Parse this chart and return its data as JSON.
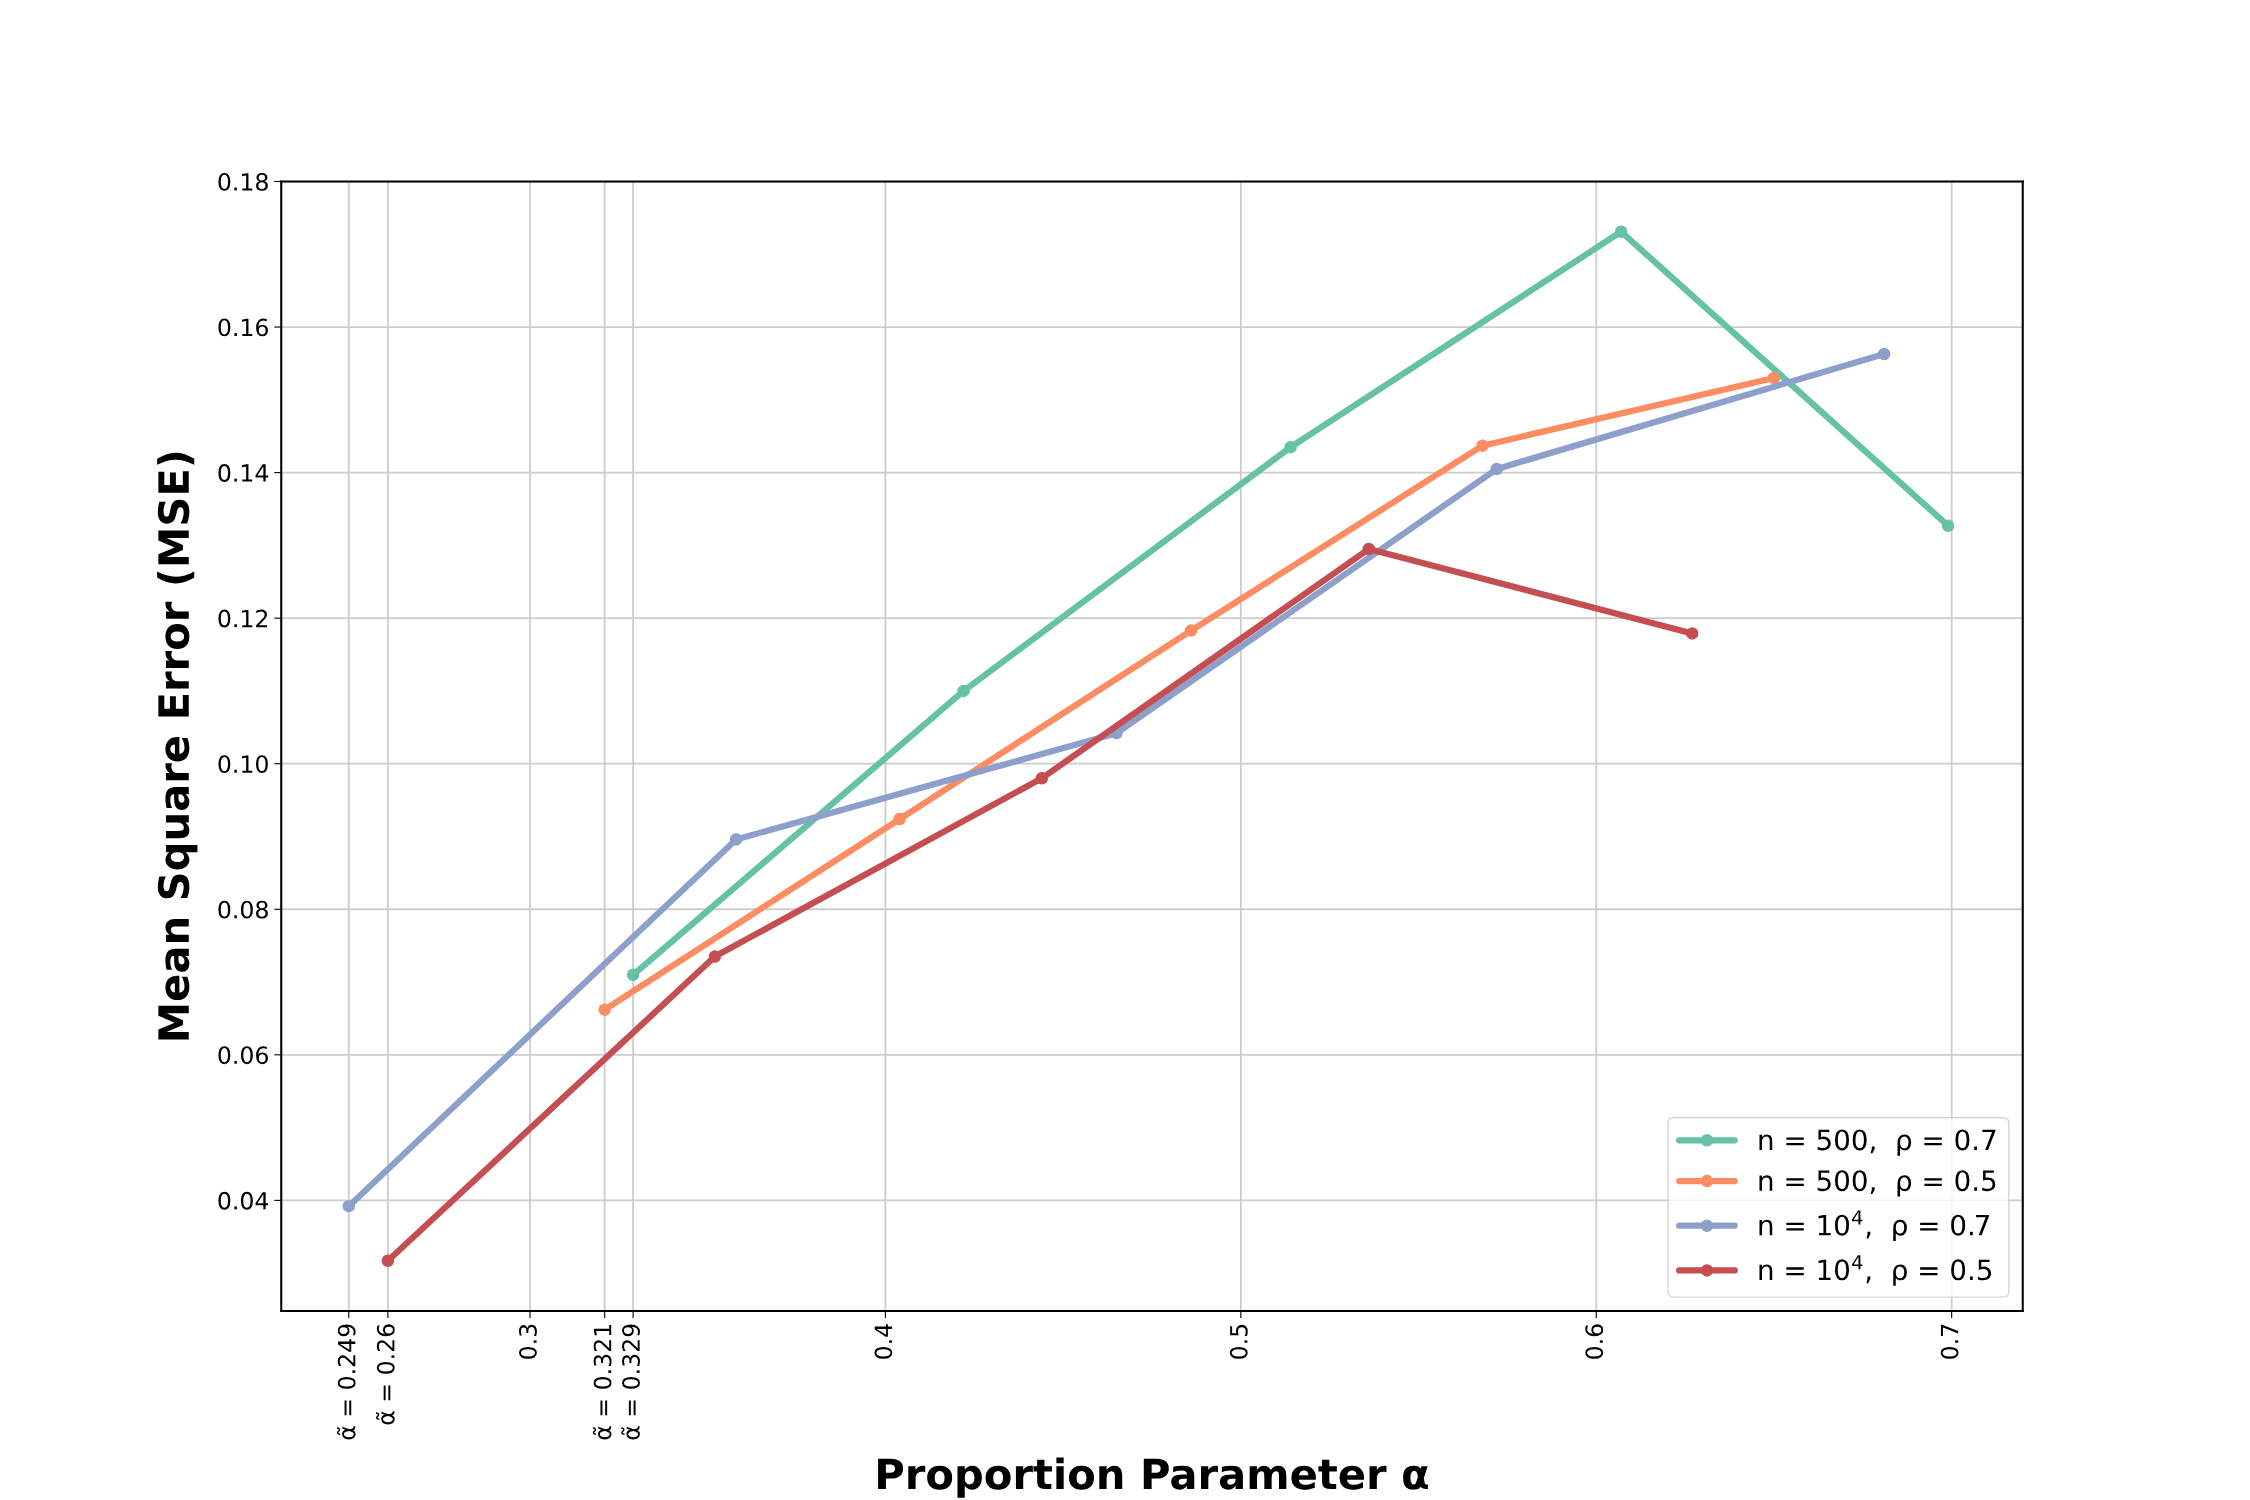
{
  "chart_data": {
    "type": "line",
    "xlabel": "Proportion Parameter α",
    "ylabel": "Mean Square Error (MSE)",
    "xlim": [
      0.23,
      0.72
    ],
    "ylim": [
      0.0248,
      0.18
    ],
    "xticks": [
      {
        "value": 0.249,
        "label": "α̃ = 0.249"
      },
      {
        "value": 0.26,
        "label": "α̃ = 0.26"
      },
      0.3,
      {
        "value": 0.321,
        "label": "α̃ = 0.321"
      },
      {
        "value": 0.329,
        "label": "α̃ = 0.329"
      },
      0.4,
      0.5,
      0.6,
      0.7
    ],
    "yticks": [
      {
        "value": 0.04,
        "label": "0.04"
      },
      {
        "value": 0.06,
        "label": "0.06"
      },
      {
        "value": 0.08,
        "label": "0.08"
      },
      {
        "value": 0.1,
        "label": "0.10"
      },
      {
        "value": 0.12,
        "label": "0.12"
      },
      {
        "value": 0.14,
        "label": "0.14"
      },
      {
        "value": 0.16,
        "label": "0.16"
      },
      {
        "value": 0.18,
        "label": "0.18"
      }
    ],
    "grid": true,
    "legend": "bottom right",
    "marker": "circle",
    "line_style": "solid",
    "series": [
      {
        "name": "n = 500,  ρ = 0.7",
        "color": "#66c2a5",
        "x": [
          0.329,
          0.422,
          0.514,
          0.607,
          0.699
        ],
        "values": [
          0.071,
          0.11,
          0.1435,
          0.1731,
          0.1327
        ]
      },
      {
        "name": "n = 500,  ρ = 0.5",
        "color": "#fc8d62",
        "x": [
          0.321,
          0.404,
          0.486,
          0.568,
          0.65
        ],
        "values": [
          0.0662,
          0.0924,
          0.1183,
          0.1437,
          0.153
        ]
      },
      {
        "name": "n = 10$^{4}$,  ρ = 0.7",
        "color": "#8da0cb",
        "x": [
          0.249,
          0.358,
          0.465,
          0.572,
          0.681
        ],
        "values": [
          0.0392,
          0.0896,
          0.1042,
          0.1405,
          0.1563
        ]
      },
      {
        "name": "n = 10$^{4}$,  ρ = 0.5",
        "color": "#c44e52",
        "x": [
          0.26,
          0.352,
          0.444,
          0.536,
          0.627
        ],
        "values": [
          0.0317,
          0.0735,
          0.098,
          0.1295,
          0.1179
        ]
      }
    ]
  }
}
